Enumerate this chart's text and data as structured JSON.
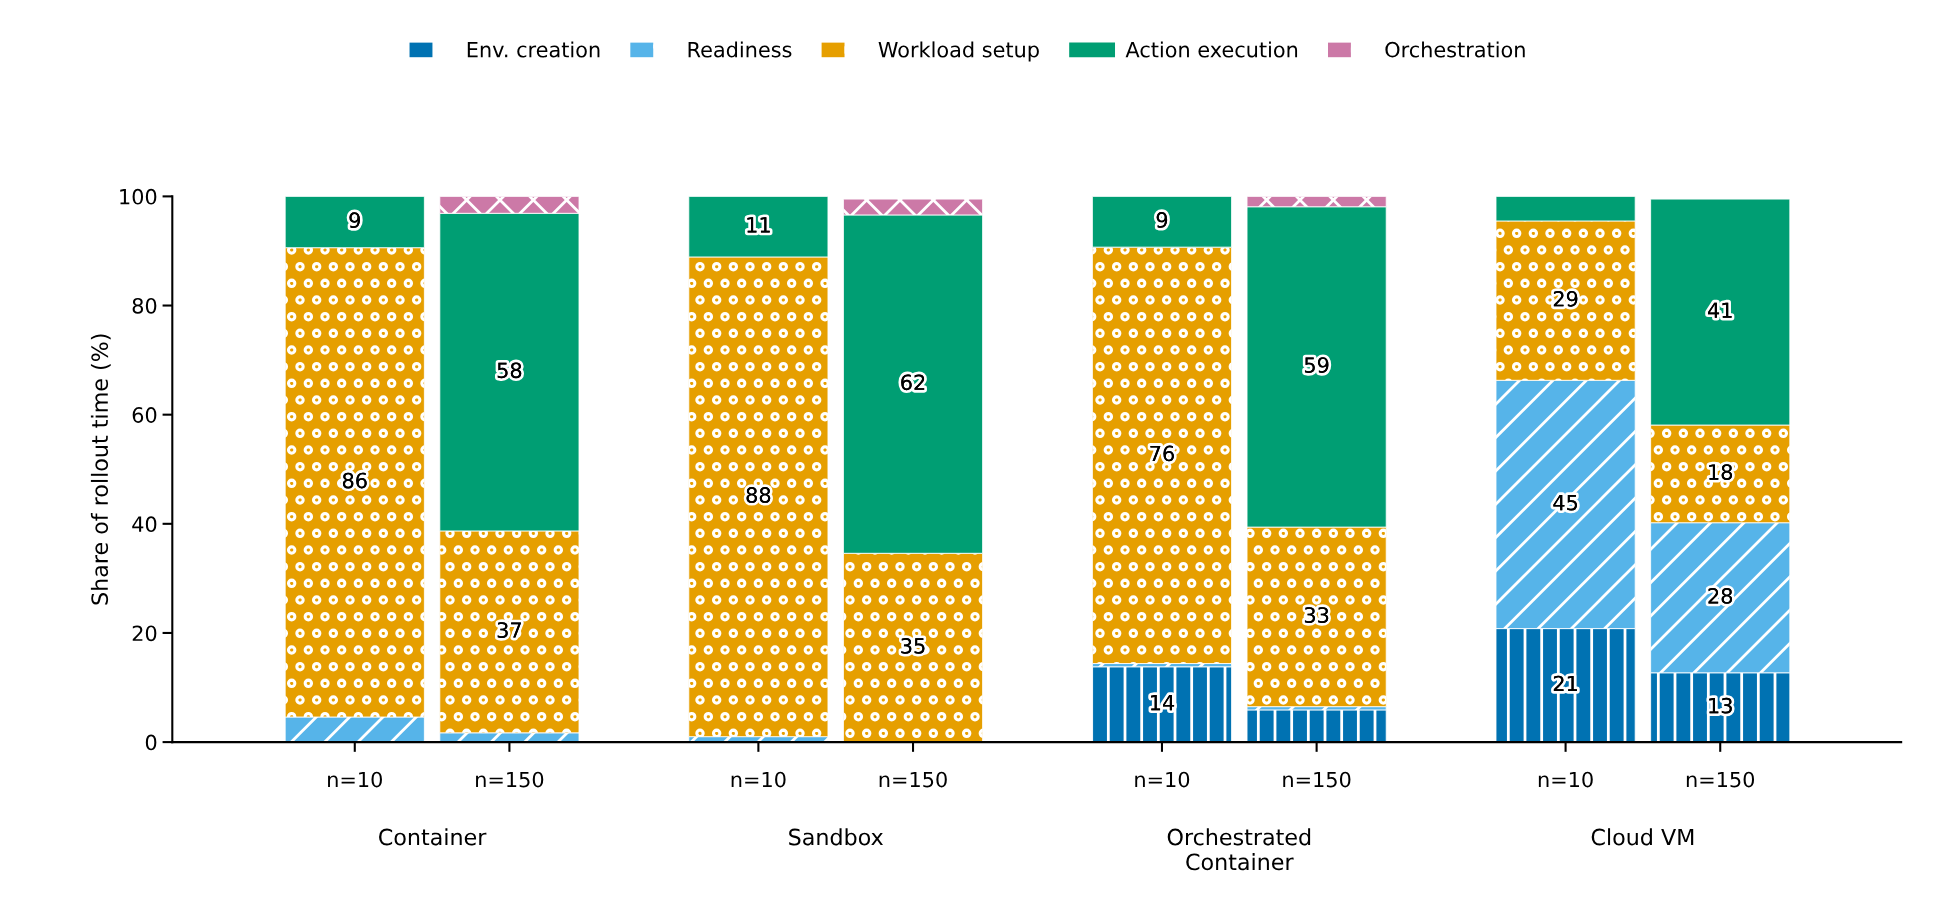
{
  "chart_data": {
    "type": "bar",
    "stacked": true,
    "categories": [
      "n=10",
      "n=150",
      "n=10",
      "n=150",
      "n=10",
      "n=150",
      "n=10",
      "n=150"
    ],
    "annotations": [
      "Container",
      "Sandbox",
      "Orchestrated\nContainer",
      "Cloud VM"
    ],
    "ylabel": "Share of rollout time (%)",
    "ylim": [
      0,
      100
    ],
    "yticks": [
      0,
      20,
      40,
      60,
      80,
      100
    ],
    "legend": "top",
    "grid": false,
    "series": [
      {
        "name": "Env. creation",
        "color": "#0072b2",
        "values": [
          null,
          null,
          null,
          null,
          13.8,
          5.9,
          20.8,
          12.7
        ],
        "value_labels": [
          null,
          null,
          null,
          null,
          "14",
          null,
          "21",
          "13"
        ]
      },
      {
        "name": "Readiness",
        "color": "#56b4e9",
        "values": [
          4.6,
          1.7,
          1.0,
          null,
          0.6,
          0.6,
          45.5,
          27.5
        ],
        "value_labels": [
          null,
          null,
          null,
          null,
          null,
          null,
          "45",
          "28"
        ]
      },
      {
        "name": "Workload setup",
        "color": "#e69f00",
        "values": [
          86.0,
          37.0,
          87.9,
          34.6,
          76.3,
          32.9,
          29.2,
          17.9
        ],
        "value_labels": [
          "86",
          "37",
          "88",
          "35",
          "76",
          "33",
          "29",
          "18"
        ]
      },
      {
        "name": "Action execution",
        "color": "#009e73",
        "values": [
          9.4,
          58.2,
          11.1,
          62.0,
          9.3,
          58.7,
          4.5,
          41.4
        ],
        "value_labels": [
          "9",
          "58",
          "11",
          "62",
          "9",
          "59",
          null,
          "41"
        ]
      },
      {
        "name": "Orchestration",
        "color": "#cc79a7",
        "values": [
          null,
          3.1,
          null,
          2.9,
          null,
          1.9,
          null,
          null
        ],
        "value_labels": [
          null,
          null,
          null,
          null,
          null,
          null,
          null,
          null
        ]
      }
    ]
  }
}
